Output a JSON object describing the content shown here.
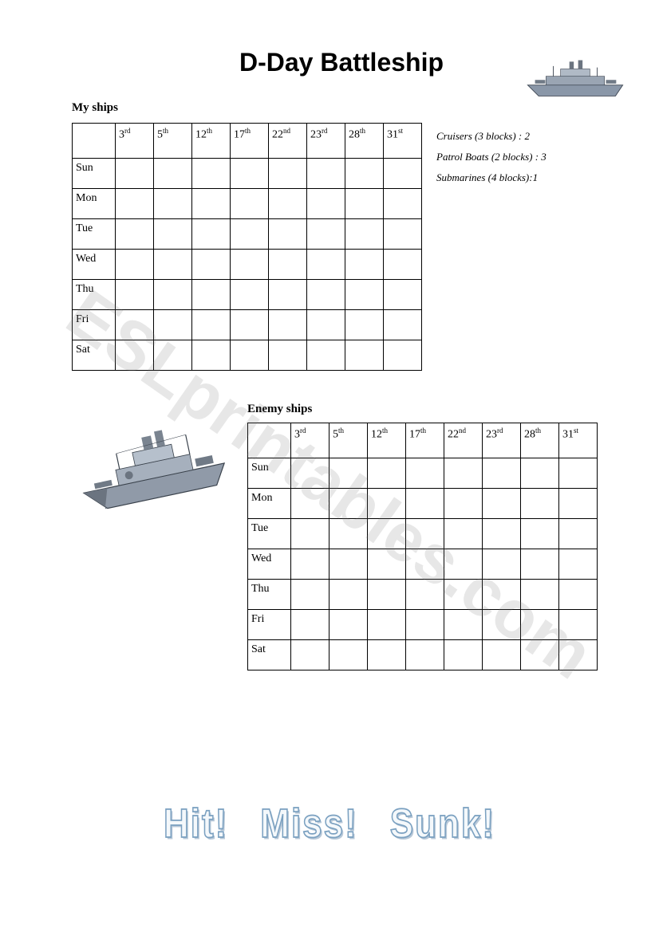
{
  "title": "D-Day Battleship",
  "watermark": "ESLprintables.com",
  "grids": {
    "columns": [
      {
        "num": "3",
        "suf": "rd"
      },
      {
        "num": "5",
        "suf": "th"
      },
      {
        "num": "12",
        "suf": "th"
      },
      {
        "num": "17",
        "suf": "th"
      },
      {
        "num": "22",
        "suf": "nd"
      },
      {
        "num": "23",
        "suf": "rd"
      },
      {
        "num": "28",
        "suf": "th"
      },
      {
        "num": "31",
        "suf": "st"
      }
    ],
    "rows": [
      "Sun",
      "Mon",
      "Tue",
      "Wed",
      "Thu",
      "Fri",
      "Sat"
    ]
  },
  "sections": {
    "my_label": "My ships",
    "enemy_label": "Enemy ships"
  },
  "ship_info": {
    "line1": "Cruisers (3 blocks) : 2",
    "line2": "Patrol Boats (2 blocks) : 3",
    "line3": "Submarines (4 blocks):1"
  },
  "wordart": {
    "hit": "Hit!",
    "miss": "Miss!",
    "sunk": "Sunk!"
  },
  "colors": {
    "ship_body": "#8a97a8",
    "ship_dark": "#505a68",
    "ship_light": "#c8d0db"
  }
}
